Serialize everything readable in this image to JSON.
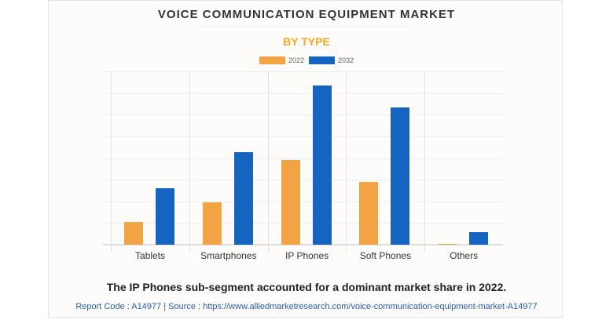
{
  "header": {
    "title": "VOICE COMMUNICATION EQUIPMENT MARKET",
    "subtitle": "BY TYPE"
  },
  "legend": [
    {
      "label": "2022",
      "color": "#f2a444"
    },
    {
      "label": "2032",
      "color": "#1565c0"
    }
  ],
  "footer": {
    "caption": "The IP Phones sub-segment accounted for a dominant market share in 2022.",
    "source": "Report Code : A14977  |  Source : https://www.alliedmarketresearch.com/voice-communication-equipment-market-A14977"
  },
  "chart_data": {
    "type": "bar",
    "title": "VOICE COMMUNICATION EQUIPMENT MARKET",
    "subtitle": "BY TYPE",
    "xlabel": "",
    "ylabel": "",
    "categories": [
      "Tablets",
      "Smartphones",
      "IP Phones",
      "Soft Phones",
      "Others"
    ],
    "series": [
      {
        "name": "2022",
        "color": "#f2a444",
        "values": [
          1.05,
          1.95,
          3.9,
          2.89,
          0.04
        ]
      },
      {
        "name": "2032",
        "color": "#1565c0",
        "values": [
          2.6,
          4.26,
          7.36,
          6.35,
          0.58
        ]
      }
    ],
    "ylim": [
      0,
      8
    ],
    "y_units": "relative gridline units (no y-axis tick labels shown)",
    "grid": true,
    "legend_position": "top"
  }
}
